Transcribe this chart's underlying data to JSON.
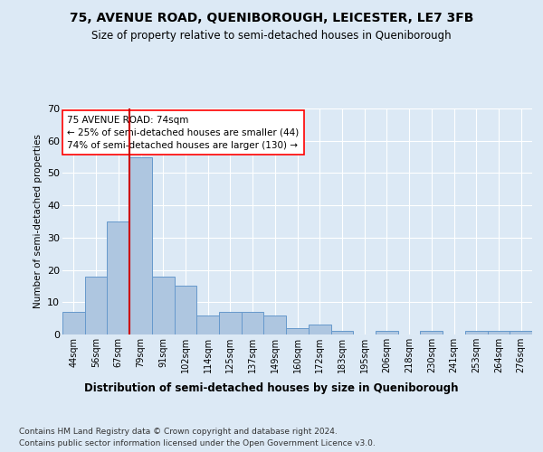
{
  "title1": "75, AVENUE ROAD, QUENIBOROUGH, LEICESTER, LE7 3FB",
  "title2": "Size of property relative to semi-detached houses in Queniborough",
  "xlabel": "Distribution of semi-detached houses by size in Queniborough",
  "ylabel": "Number of semi-detached properties",
  "footer1": "Contains HM Land Registry data © Crown copyright and database right 2024.",
  "footer2": "Contains public sector information licensed under the Open Government Licence v3.0.",
  "bar_labels": [
    "44sqm",
    "56sqm",
    "67sqm",
    "79sqm",
    "91sqm",
    "102sqm",
    "114sqm",
    "125sqm",
    "137sqm",
    "149sqm",
    "160sqm",
    "172sqm",
    "183sqm",
    "195sqm",
    "206sqm",
    "218sqm",
    "230sqm",
    "241sqm",
    "253sqm",
    "264sqm",
    "276sqm"
  ],
  "bar_values": [
    7,
    18,
    35,
    55,
    18,
    15,
    6,
    7,
    7,
    6,
    2,
    3,
    1,
    0,
    1,
    0,
    1,
    0,
    1,
    1,
    1
  ],
  "bar_color": "#aec6e0",
  "bar_edge_color": "#6699cc",
  "property_label": "75 AVENUE ROAD: 74sqm",
  "pct_smaller": 25,
  "count_smaller": 44,
  "pct_larger": 74,
  "count_larger": 130,
  "vline_x_idx": 2.5,
  "bg_color": "#dce9f5",
  "grid_color": "#ffffff",
  "ylim": [
    0,
    70
  ],
  "yticks": [
    0,
    10,
    20,
    30,
    40,
    50,
    60,
    70
  ]
}
